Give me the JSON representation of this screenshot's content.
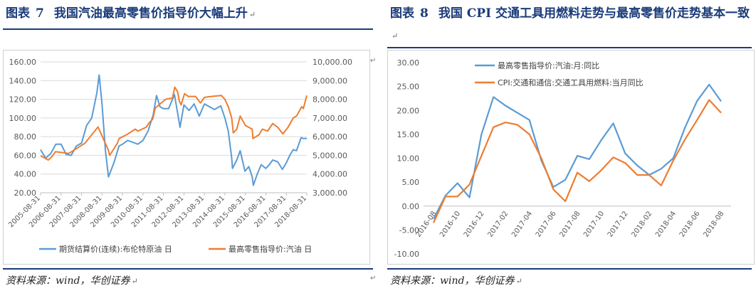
{
  "left": {
    "title_prefix": "图表",
    "title_num": "7",
    "title_text": "我国汽油最高零售价指导价大幅上升",
    "source": "资料来源：wind，华创证券",
    "chart_data": {
      "type": "line",
      "series": [
        {
          "name": "期货结算价(连续):布伦特原油 日",
          "axis": "left",
          "color": "#5b9bd5",
          "dates": [
            "2005-08-31",
            "2005-11-30",
            "2006-02-28",
            "2006-05-31",
            "2006-08-31",
            "2006-11-30",
            "2007-02-28",
            "2007-05-31",
            "2007-08-31",
            "2007-11-30",
            "2008-02-29",
            "2008-05-31",
            "2008-07-11",
            "2008-08-31",
            "2008-10-31",
            "2008-12-24",
            "2009-03-31",
            "2009-06-30",
            "2009-08-31",
            "2009-11-30",
            "2010-02-28",
            "2010-05-31",
            "2010-08-31",
            "2010-11-30",
            "2011-02-28",
            "2011-04-30",
            "2011-06-30",
            "2011-08-31",
            "2011-11-30",
            "2012-03-15",
            "2012-06-22",
            "2012-08-31",
            "2012-11-30",
            "2013-02-28",
            "2013-05-31",
            "2013-08-31",
            "2013-11-30",
            "2014-02-28",
            "2014-06-20",
            "2014-08-31",
            "2014-10-31",
            "2014-12-31",
            "2015-01-13",
            "2015-03-31",
            "2015-05-31",
            "2015-08-24",
            "2015-10-31",
            "2015-12-31",
            "2016-01-20",
            "2016-03-31",
            "2016-06-08",
            "2016-08-31",
            "2016-10-31",
            "2016-12-31",
            "2017-03-31",
            "2017-06-21",
            "2017-08-31",
            "2017-10-31",
            "2017-12-31",
            "2018-02-28",
            "2018-05-22",
            "2018-06-30",
            "2018-08-31"
          ],
          "values": [
            66,
            57,
            62,
            72,
            72,
            61,
            60,
            70,
            73,
            92,
            100,
            127,
            146,
            115,
            65,
            37,
            52,
            70,
            72,
            76,
            74,
            72,
            76,
            86,
            103,
            124,
            112,
            110,
            110,
            125,
            90,
            114,
            108,
            115,
            102,
            115,
            112,
            109,
            113,
            100,
            86,
            57,
            46,
            55,
            65,
            43,
            48,
            37,
            28,
            40,
            50,
            46,
            50,
            55,
            53,
            45,
            52,
            60,
            66,
            65,
            79,
            78,
            78
          ]
        },
        {
          "name": "最高零售指导价:汽油 日",
          "axis": "right",
          "color": "#ed7d31",
          "dates": [
            "2005-08-31",
            "2006-01-15",
            "2006-03-26",
            "2006-05-24",
            "2007-01-14",
            "2007-11-01",
            "2008-06-20",
            "2008-12-19",
            "2009-01-15",
            "2009-06-01",
            "2009-07-01",
            "2009-11-10",
            "2010-04-14",
            "2010-06-01",
            "2010-10-26",
            "2010-12-22",
            "2011-02-20",
            "2011-04-07",
            "2011-10-09",
            "2012-02-08",
            "2012-03-20",
            "2012-05-10",
            "2012-06-09",
            "2012-07-11",
            "2012-08-10",
            "2012-09-11",
            "2012-11-16",
            "2013-03-27",
            "2013-06-20",
            "2013-09-01",
            "2013-12-31",
            "2014-06-30",
            "2014-08-31",
            "2014-10-31",
            "2014-12-31",
            "2015-01-27",
            "2015-03-31",
            "2015-05-31",
            "2015-08-31",
            "2015-12-31",
            "2016-01-13",
            "2016-04-30",
            "2016-06-30",
            "2016-09-30",
            "2016-12-31",
            "2017-03-31",
            "2017-06-30",
            "2017-09-30",
            "2017-12-31",
            "2018-02-28",
            "2018-05-31",
            "2018-06-30",
            "2018-08-31"
          ],
          "values": [
            4980,
            4750,
            4950,
            5200,
            5100,
            5650,
            6520,
            5300,
            5000,
            5650,
            5900,
            6100,
            6400,
            6300,
            6500,
            6750,
            6930,
            7530,
            8000,
            8070,
            8650,
            8400,
            7900,
            7700,
            8000,
            8300,
            8150,
            8150,
            7800,
            8100,
            8150,
            8200,
            8000,
            7600,
            7000,
            6200,
            6400,
            7100,
            6600,
            6400,
            5900,
            6100,
            6400,
            6300,
            6700,
            6500,
            6150,
            6500,
            7000,
            7100,
            7600,
            7500,
            8200
          ]
        }
      ],
      "y_left": {
        "min": 20,
        "max": 160,
        "ticks": [
          "20.00",
          "40.00",
          "60.00",
          "80.00",
          "100.00",
          "120.00",
          "140.00",
          "160.00"
        ]
      },
      "y_right": {
        "min": 3000,
        "max": 10000,
        "ticks": [
          "3,000.00",
          "4,000.00",
          "5,000.00",
          "6,000.00",
          "7,000.00",
          "8,000.00",
          "9,000.00",
          "10,000.00"
        ]
      },
      "x_ticks": [
        "2005-08-31",
        "2006-08-31",
        "2007-08-31",
        "2008-08-31",
        "2009-08-31",
        "2010-08-31",
        "2011-08-31",
        "2012-08-31",
        "2013-08-31",
        "2014-08-31",
        "2015-08-31",
        "2016-08-31",
        "2017-08-31",
        "2018-08-31"
      ],
      "legend_position": "bottom",
      "grid": true
    }
  },
  "right": {
    "title_prefix": "图表",
    "title_num": "8",
    "title_text": "我国 CPI 交通工具用燃料走势与最高零售价走势基本一致",
    "source": "资料来源：wind，华创证券",
    "chart_data": {
      "type": "line",
      "categories": [
        "2016-08",
        "2016-10",
        "2016-12",
        "2017-02",
        "2017-04",
        "2017-06",
        "2017-08",
        "2017-10",
        "2017-12",
        "2018-02",
        "2018-04",
        "2018-06",
        "2018-08"
      ],
      "series": [
        {
          "name": "最高零售指导价:汽油:月:同比",
          "color": "#5b9bd5",
          "x": [
            "2016-08",
            "2016-09",
            "2016-10",
            "2016-11",
            "2016-12",
            "2017-01",
            "2017-02",
            "2017-03",
            "2017-04",
            "2017-05",
            "2017-06",
            "2017-07",
            "2017-08",
            "2017-09",
            "2017-10",
            "2017-11",
            "2017-12",
            "2018-01",
            "2018-02",
            "2018-03",
            "2018-04",
            "2018-05",
            "2018-06",
            "2018-07",
            "2018-08"
          ],
          "values": [
            -2.7,
            2.2,
            4.8,
            1.8,
            15.0,
            22.8,
            21.0,
            19.5,
            18.0,
            9.5,
            4.0,
            5.5,
            10.5,
            9.8,
            13.8,
            17.3,
            11.0,
            8.5,
            6.5,
            7.8,
            10.0,
            16.5,
            22.0,
            25.4,
            21.9
          ]
        },
        {
          "name": "CPI:交通和通信:交通工具用燃料:当月同比",
          "color": "#ed7d31",
          "x": [
            "2016-08",
            "2016-09",
            "2016-10",
            "2016-11",
            "2016-12",
            "2017-01",
            "2017-02",
            "2017-03",
            "2017-04",
            "2017-05",
            "2017-06",
            "2017-07",
            "2017-08",
            "2017-09",
            "2017-10",
            "2017-11",
            "2017-12",
            "2018-01",
            "2018-02",
            "2018-03",
            "2018-04",
            "2018-05",
            "2018-06",
            "2018-07",
            "2018-08"
          ],
          "values": [
            -3.5,
            2.0,
            2.0,
            4.5,
            10.5,
            16.5,
            17.5,
            17.0,
            15.0,
            10.0,
            3.5,
            1.0,
            7.0,
            5.2,
            7.5,
            10.2,
            9.0,
            6.5,
            6.5,
            4.3,
            9.5,
            14.0,
            18.0,
            22.2,
            19.5
          ]
        }
      ],
      "y": {
        "min": -10,
        "max": 30,
        "ticks": [
          "-10.00",
          "-5.00",
          "0.00",
          "5.00",
          "10.00",
          "15.00",
          "20.00",
          "25.00",
          "30.00"
        ]
      },
      "legend_position": "top-left",
      "grid": false
    }
  }
}
